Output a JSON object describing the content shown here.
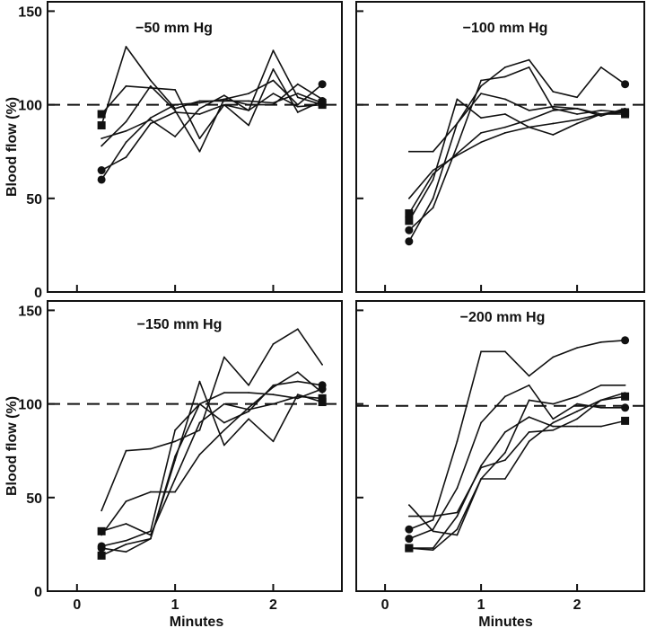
{
  "chart_data": [
    {
      "type": "line",
      "title": "−50 mm Hg",
      "ylabel": "Blood flow (%)",
      "xlabel": "",
      "xlim": [
        -0.3,
        2.7
      ],
      "ylim": [
        0,
        155
      ],
      "xticks": [
        "",
        "",
        ""
      ],
      "yticks": [
        "0",
        "50",
        "100",
        "150"
      ],
      "reference_line": 100,
      "series": [
        {
          "marker": "square",
          "x": [
            0.25,
            0.5,
            1.0,
            1.25,
            1.5,
            1.75,
            2.0,
            2.25,
            2.5
          ],
          "y": [
            95,
            110,
            108,
            82,
            100,
            97,
            129,
            104,
            100
          ]
        },
        {
          "marker": "square",
          "x": [
            0.25,
            0.5,
            0.75,
            1.0,
            1.25,
            1.5,
            1.75,
            2.0,
            2.25,
            2.5
          ],
          "y": [
            89,
            131,
            113,
            98,
            102,
            102,
            102,
            101,
            106,
            101
          ]
        },
        {
          "marker": "circle",
          "x": [
            0.25,
            0.5,
            0.75,
            1.0,
            1.25,
            1.5,
            1.75,
            2.0,
            2.25,
            2.5
          ],
          "y": [
            60,
            80,
            93,
            100,
            101,
            103,
            106,
            113,
            100,
            111
          ]
        },
        {
          "marker": "circle",
          "x": [
            0.25,
            0.5,
            0.75,
            1.0,
            1.25,
            1.5,
            1.75,
            2.0,
            2.25,
            2.5
          ],
          "y": [
            65,
            72,
            90,
            96,
            95,
            100,
            89,
            119,
            96,
            102
          ]
        },
        {
          "marker": "none",
          "x": [
            0.25,
            0.5,
            0.75,
            1.0,
            1.25,
            1.5,
            1.75,
            2.0,
            2.25,
            2.5
          ],
          "y": [
            78,
            91,
            110,
            97,
            75,
            103,
            100,
            100,
            111,
            103
          ]
        },
        {
          "marker": "none",
          "x": [
            0.25,
            0.5,
            0.75,
            1.0,
            1.25,
            1.5,
            1.75,
            2.0,
            2.25,
            2.5
          ],
          "y": [
            82,
            86,
            92,
            83,
            98,
            105,
            97,
            106,
            99,
            100
          ]
        }
      ]
    },
    {
      "type": "line",
      "title": "−100 mm Hg",
      "ylabel": "",
      "xlabel": "",
      "xlim": [
        -0.3,
        2.7
      ],
      "ylim": [
        0,
        155
      ],
      "xticks": [
        "",
        "",
        ""
      ],
      "yticks": [
        "",
        "",
        "",
        ""
      ],
      "reference_line": 100,
      "series": [
        {
          "marker": "circle",
          "x": [
            0.25,
            0.5,
            0.75,
            1.0,
            1.25,
            1.5,
            1.75,
            2.0,
            2.25,
            2.5
          ],
          "y": [
            27,
            50,
            90,
            110,
            120,
            124,
            107,
            104,
            120,
            111
          ]
        },
        {
          "marker": "circle",
          "x": [
            0.25,
            0.5,
            0.75,
            1.0,
            1.25,
            1.5,
            1.75,
            2.0,
            2.25,
            2.5
          ],
          "y": [
            33,
            45,
            78,
            113,
            115,
            120,
            98,
            95,
            97,
            96
          ]
        },
        {
          "marker": "square",
          "x": [
            0.25,
            0.5,
            0.75,
            1.0,
            1.25,
            1.5,
            1.75,
            2.0,
            2.25,
            2.5
          ],
          "y": [
            38,
            60,
            103,
            93,
            95,
            88,
            84,
            90,
            95,
            95
          ]
        },
        {
          "marker": "square",
          "x": [
            0.25,
            0.5,
            0.75,
            1.0,
            1.25,
            1.5,
            1.75,
            2.0,
            2.25,
            2.5
          ],
          "y": [
            42,
            63,
            74,
            85,
            88,
            92,
            97,
            98,
            95,
            96
          ]
        },
        {
          "marker": "none",
          "x": [
            0.25,
            0.5,
            0.75,
            1.0,
            1.25,
            1.5,
            1.75,
            2.0,
            2.25,
            2.5
          ],
          "y": [
            75,
            75,
            90,
            106,
            103,
            97,
            99,
            98,
            94,
            98
          ]
        },
        {
          "marker": "none",
          "x": [
            0.25,
            0.5,
            0.75,
            1.0,
            1.25,
            1.5,
            1.75,
            2.0,
            2.25,
            2.5
          ],
          "y": [
            50,
            65,
            73,
            80,
            85,
            88,
            90,
            92,
            95,
            97
          ]
        }
      ]
    },
    {
      "type": "line",
      "title": "−150 mm Hg",
      "ylabel": "Blood flow (%)",
      "xlabel": "Minutes",
      "xlim": [
        -0.3,
        2.7
      ],
      "ylim": [
        0,
        155
      ],
      "xticks": [
        "0",
        "1",
        "2"
      ],
      "yticks": [
        "0",
        "50",
        "100",
        "150"
      ],
      "reference_line": 100,
      "series": [
        {
          "marker": "square",
          "x": [
            0.25,
            0.5,
            0.75,
            1.0,
            1.25,
            1.5,
            1.75,
            2.0,
            2.25,
            2.5
          ],
          "y": [
            19,
            25,
            28,
            70,
            112,
            78,
            92,
            80,
            105,
            101
          ]
        },
        {
          "marker": "square",
          "x": [
            0.25,
            0.5,
            0.75,
            1.0,
            1.25,
            1.5,
            1.75,
            2.0,
            2.25,
            2.5
          ],
          "y": [
            32,
            36,
            30,
            60,
            90,
            100,
            97,
            100,
            104,
            103
          ]
        },
        {
          "marker": "circle",
          "x": [
            0.25,
            0.5,
            0.75,
            1.0,
            1.25,
            1.5,
            1.75,
            2.0,
            2.25,
            2.5
          ],
          "y": [
            23,
            21,
            28,
            72,
            100,
            106,
            106,
            105,
            103,
            108
          ]
        },
        {
          "marker": "circle",
          "x": [
            0.25,
            0.5,
            0.75,
            1.0,
            1.25,
            1.5,
            1.75,
            2.0,
            2.25,
            2.5
          ],
          "y": [
            24,
            27,
            32,
            86,
            100,
            90,
            96,
            110,
            112,
            110
          ]
        },
        {
          "marker": "none",
          "x": [
            0.25,
            0.5,
            0.75,
            1.0,
            1.25,
            1.5,
            1.75,
            2.0,
            2.25,
            2.5
          ],
          "y": [
            43,
            75,
            76,
            80,
            86,
            125,
            110,
            132,
            140,
            121
          ]
        },
        {
          "marker": "none",
          "x": [
            0.25,
            0.5,
            0.75,
            1.0,
            1.25,
            1.5,
            1.75,
            2.0,
            2.25,
            2.5
          ],
          "y": [
            30,
            48,
            53,
            53,
            73,
            86,
            98,
            109,
            117,
            106
          ]
        }
      ]
    },
    {
      "type": "line",
      "title": "−200 mm Hg",
      "ylabel": "",
      "xlabel": "Minutes",
      "xlim": [
        -0.3,
        2.7
      ],
      "ylim": [
        0,
        155
      ],
      "xticks": [
        "0",
        "1",
        "2"
      ],
      "yticks": [
        "",
        "",
        "",
        ""
      ],
      "reference_line": 99,
      "series": [
        {
          "marker": "circle",
          "x": [
            0.25,
            0.5,
            0.75,
            1.0,
            1.25,
            1.5,
            1.75,
            2.0,
            2.25,
            2.5
          ],
          "y": [
            33,
            38,
            80,
            128,
            128,
            115,
            125,
            130,
            133,
            134
          ]
        },
        {
          "marker": "circle",
          "x": [
            0.25,
            0.5,
            0.75,
            1.0,
            1.25,
            1.5,
            1.75,
            2.0,
            2.25,
            2.5
          ],
          "y": [
            28,
            33,
            55,
            90,
            104,
            110,
            92,
            100,
            98,
            98
          ]
        },
        {
          "marker": "square",
          "x": [
            0.25,
            0.5,
            0.75,
            1.0,
            1.25,
            1.5,
            1.75,
            2.0,
            2.25,
            2.5
          ],
          "y": [
            23,
            22,
            33,
            60,
            60,
            80,
            90,
            96,
            102,
            104
          ]
        },
        {
          "marker": "square",
          "x": [
            0.25,
            0.5,
            0.75,
            1.0,
            1.25,
            1.5,
            1.75,
            2.0,
            2.25,
            2.5
          ],
          "y": [
            23,
            23,
            40,
            67,
            85,
            93,
            88,
            88,
            88,
            91
          ]
        },
        {
          "marker": "none",
          "x": [
            0.25,
            0.5,
            0.75,
            1.0,
            1.25,
            1.5,
            1.75,
            2.0,
            2.25,
            2.5
          ],
          "y": [
            46,
            32,
            30,
            60,
            74,
            102,
            100,
            104,
            110,
            110
          ]
        },
        {
          "marker": "none",
          "x": [
            0.25,
            0.5,
            0.75,
            1.0,
            1.25,
            1.5,
            1.75,
            2.0,
            2.25,
            2.5
          ],
          "y": [
            40,
            40,
            42,
            66,
            70,
            85,
            86,
            92,
            102,
            106
          ]
        }
      ]
    }
  ]
}
